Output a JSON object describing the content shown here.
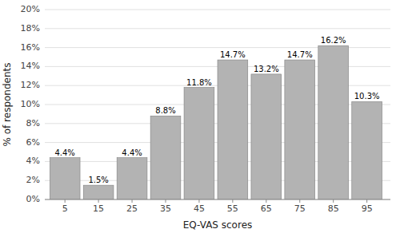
{
  "chart_data": {
    "type": "bar",
    "x": [
      5,
      15,
      25,
      35,
      45,
      55,
      65,
      75,
      85,
      95
    ],
    "values": [
      4.4,
      1.5,
      4.4,
      8.8,
      11.8,
      14.7,
      13.2,
      14.7,
      16.2,
      10.3
    ],
    "value_labels": [
      "4.4%",
      "1.5%",
      "4.4%",
      "8.8%",
      "11.8%",
      "14.7%",
      "13.2%",
      "14.7%",
      "16.2%",
      "10.3%"
    ],
    "data_labels": true,
    "color": "#b3b3b3",
    "xlabel": "EQ-VAS scores",
    "ylabel": "% of respondents",
    "xlim": [
      -1,
      102
    ],
    "xticks": [
      5,
      15,
      25,
      35,
      45,
      55,
      65,
      75,
      85,
      95
    ],
    "ylim": [
      0,
      20
    ],
    "yticks": [
      {
        "value": 0,
        "label": "0%"
      },
      {
        "value": 2,
        "label": "2%"
      },
      {
        "value": 4,
        "label": "4%"
      },
      {
        "value": 6,
        "label": "6%"
      },
      {
        "value": 8,
        "label": "8%"
      },
      {
        "value": 10,
        "label": "10%"
      },
      {
        "value": 12,
        "label": "12%"
      },
      {
        "value": 14,
        "label": "14%"
      },
      {
        "value": 16,
        "label": "16%"
      },
      {
        "value": 18,
        "label": "18%"
      },
      {
        "value": 20,
        "label": "20%"
      }
    ],
    "grid": true
  }
}
